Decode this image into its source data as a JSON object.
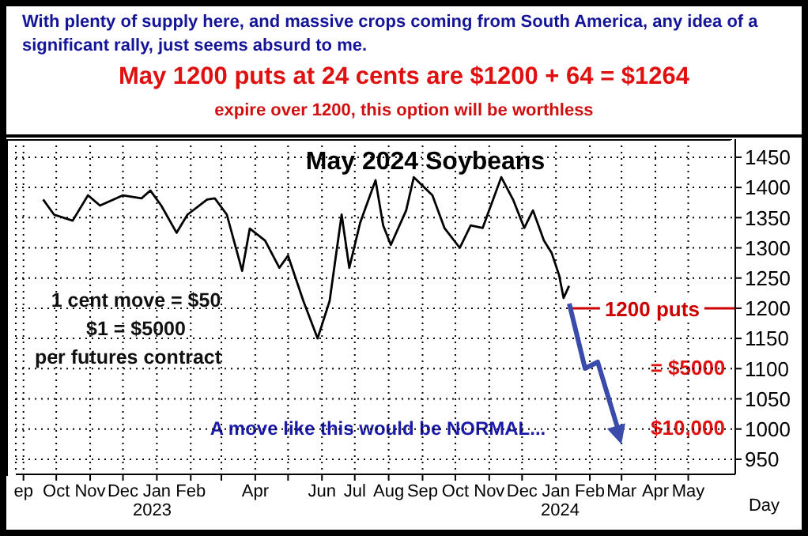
{
  "chart_data": {
    "type": "line",
    "title": "May 2024 Soybeans",
    "xlabel": "Day",
    "annotations": [
      "With plenty of supply here, and massive crops coming from South America, any idea of a significant rally, just seems absurd to me.",
      "May 1200 puts at 24 cents are $1200 + 64 = $1264",
      "expire over 1200, this option will be worthless",
      "1 cent move = $50",
      "$1 = $5000",
      "per futures contract",
      "A move like this would be NORMAL...",
      "= $5000",
      "$10,000",
      "2023",
      "2024"
    ],
    "series": [
      {
        "color": "#000000",
        "x": [
          "2022-09-19",
          "2022-09-29",
          "2022-10-16",
          "2022-10-30",
          "2022-11-10",
          "2022-12-01",
          "2022-12-18",
          "2022-12-26",
          "2023-01-05",
          "2023-01-19",
          "2023-01-29",
          "2023-02-16",
          "2023-02-23",
          "2023-03-06",
          "2023-03-20",
          "2023-03-27",
          "2023-04-10",
          "2023-04-23",
          "2023-05-01",
          "2023-05-15",
          "2023-05-28",
          "2023-06-08",
          "2023-06-19",
          "2023-06-26",
          "2023-07-06",
          "2023-07-20",
          "2023-07-27",
          "2023-08-03",
          "2023-08-17",
          "2023-08-24",
          "2023-09-10",
          "2023-09-21",
          "2023-10-05",
          "2023-10-15",
          "2023-10-26",
          "2023-11-12",
          "2023-11-23",
          "2023-12-03",
          "2023-12-11",
          "2023-12-21",
          "2023-12-28",
          "2024-01-04",
          "2024-01-08",
          "2024-01-13"
        ],
        "values": [
          1380,
          1355,
          1345,
          1387,
          1370,
          1387,
          1382,
          1395,
          1370,
          1325,
          1355,
          1380,
          1382,
          1355,
          1262,
          1332,
          1312,
          1267,
          1287,
          1212,
          1150,
          1212,
          1355,
          1267,
          1342,
          1412,
          1337,
          1305,
          1362,
          1417,
          1387,
          1333,
          1300,
          1337,
          1333,
          1417,
          1379,
          1333,
          1362,
          1312,
          1292,
          1254,
          1217,
          1237
        ]
      }
    ],
    "xlim": [
      "2022-08-25",
      "2024-06-13"
    ],
    "xticks": [
      {
        "value": "2022-09-01",
        "label": "ep"
      },
      {
        "value": "2022-10-01",
        "label": "Oct"
      },
      {
        "value": "2022-11-01",
        "label": "Nov"
      },
      {
        "value": "2022-12-01",
        "label": "Dec"
      },
      {
        "value": "2023-01-01",
        "label": "Jan"
      },
      {
        "value": "2023-02-01",
        "label": "Feb"
      },
      {
        "value": "2023-03-01",
        "label": null
      },
      {
        "value": "2023-04-01",
        "label": "Apr"
      },
      {
        "value": "2023-05-01",
        "label": null
      },
      {
        "value": "2023-06-01",
        "label": "Jun"
      },
      {
        "value": "2023-07-01",
        "label": "Jul"
      },
      {
        "value": "2023-08-01",
        "label": "Aug"
      },
      {
        "value": "2023-09-01",
        "label": "Sep"
      },
      {
        "value": "2023-10-01",
        "label": "Oct"
      },
      {
        "value": "2023-11-01",
        "label": "Nov"
      },
      {
        "value": "2023-12-01",
        "label": "Dec"
      },
      {
        "value": "2024-01-01",
        "label": "Jan"
      },
      {
        "value": "2024-02-01",
        "label": "Feb"
      },
      {
        "value": "2024-03-01",
        "label": "Mar"
      },
      {
        "value": "2024-04-01",
        "label": "Apr"
      },
      {
        "value": "2024-05-01",
        "label": "May"
      }
    ],
    "ylim": [
      925,
      1480
    ],
    "yticks": [
      950,
      1000,
      1050,
      1100,
      1150,
      1200,
      1250,
      1300,
      1350,
      1400,
      1450
    ],
    "ref_lines": [
      {
        "axis": "y",
        "value": 1200,
        "label": "1200 puts",
        "color": "#cc0000"
      }
    ],
    "grid": true
  }
}
